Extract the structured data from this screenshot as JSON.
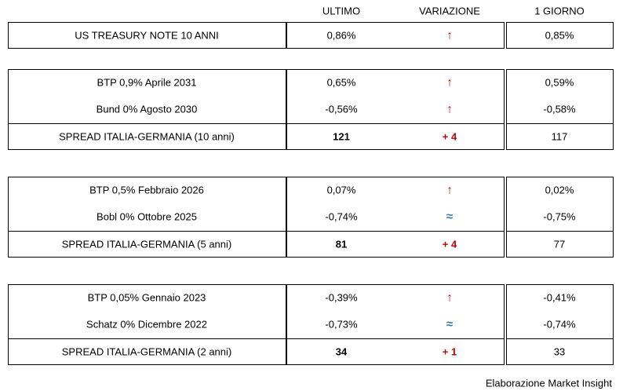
{
  "header": {
    "columns": [
      "ULTIMO",
      "VARIAZIONE",
      "1 GIORNO"
    ]
  },
  "groups": [
    {
      "rows": [
        {
          "label": "US TREASURY NOTE 10 ANNI",
          "ultimo": "0,86%",
          "variazione": "↑",
          "variazione_color": "#c00000",
          "giorno": "0,85%"
        }
      ]
    },
    {
      "rows": [
        {
          "label": "BTP 0,9% Aprile 2031",
          "ultimo": "0,65%",
          "variazione": "↑",
          "variazione_color": "#c00000",
          "giorno": "0,59%"
        },
        {
          "label": "Bund 0% Agosto 2030",
          "ultimo": "-0,56%",
          "variazione": "↑",
          "variazione_color": "#c00000",
          "giorno": "-0,58%"
        }
      ],
      "spread": {
        "label": "SPREAD ITALIA-GERMANIA (10 anni)",
        "ultimo": "121",
        "variazione": "+ 4",
        "variazione_color": "#c00000",
        "giorno": "117"
      }
    },
    {
      "rows": [
        {
          "label": "BTP 0,5% Febbraio 2026",
          "ultimo": "0,07%",
          "variazione": "↑",
          "variazione_color": "#c00000",
          "giorno": "0,02%"
        },
        {
          "label": "Bobl 0% Ottobre 2025",
          "ultimo": "-0,74%",
          "variazione": "≈",
          "variazione_color": "#2e75b6",
          "giorno": "-0,75%"
        }
      ],
      "spread": {
        "label": "SPREAD ITALIA-GERMANIA (5 anni)",
        "ultimo": "81",
        "variazione": "+ 4",
        "variazione_color": "#c00000",
        "giorno": "77"
      }
    },
    {
      "rows": [
        {
          "label": "BTP 0,05% Gennaio 2023",
          "ultimo": "-0,39%",
          "variazione": "↑",
          "variazione_color": "#c00000",
          "giorno": "-0,41%"
        },
        {
          "label": "Schatz 0% Dicembre 2022",
          "ultimo": "-0,73%",
          "variazione": "≈",
          "variazione_color": "#2e75b6",
          "giorno": "-0,74%"
        }
      ],
      "spread": {
        "label": "SPREAD ITALIA-GERMANIA (2 anni)",
        "ultimo": "34",
        "variazione": "+ 1",
        "variazione_color": "#c00000",
        "giorno": "33"
      }
    }
  ],
  "footer": "Elaborazione Market Insight"
}
